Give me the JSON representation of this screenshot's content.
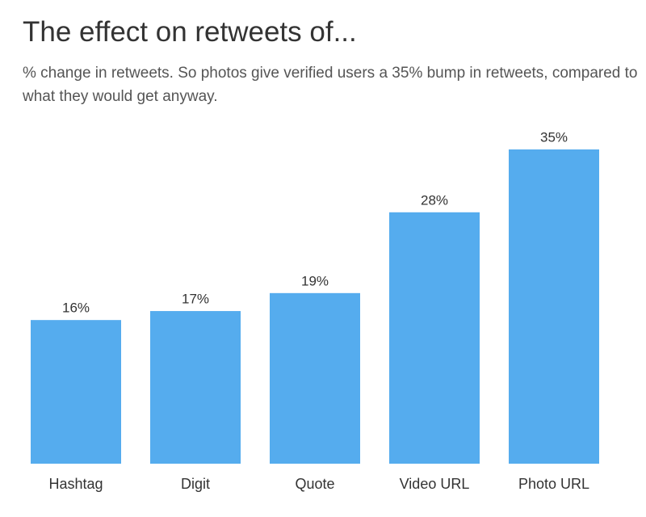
{
  "chart_data": {
    "type": "bar",
    "title": "The effect on retweets of...",
    "subtitle": "% change in retweets. So photos give verified users a 35% bump in retweets, compared to what they would get anyway.",
    "categories": [
      "Hashtag",
      "Digit",
      "Quote",
      "Video URL",
      "Photo URL"
    ],
    "values": [
      16,
      17,
      19,
      28,
      35
    ],
    "value_labels": [
      "16%",
      "17%",
      "19%",
      "28%",
      "35%"
    ],
    "color": "#55acee"
  }
}
